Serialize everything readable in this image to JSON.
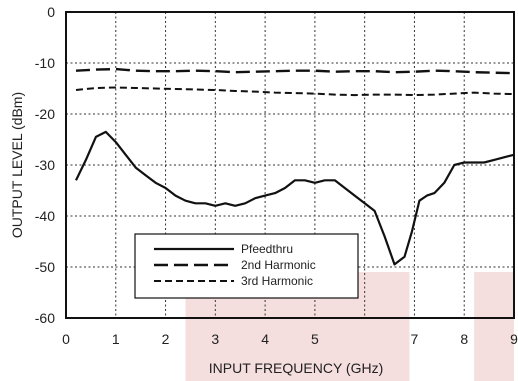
{
  "chart_data": {
    "type": "line",
    "title": "",
    "xlabel": "INPUT FREQUENCY (GHz)",
    "ylabel": "OUTPUT LEVEL (dBm)",
    "xlim": [
      0,
      9
    ],
    "ylim": [
      -60,
      0
    ],
    "xticks": [
      "0",
      "1",
      "2",
      "3",
      "4",
      "5",
      "7",
      "8",
      "9"
    ],
    "xtick_values": [
      0,
      1,
      2,
      3,
      4,
      5,
      7,
      8,
      9
    ],
    "yticks": [
      "0",
      "-10",
      "-20",
      "-30",
      "-40",
      "-50",
      "-60"
    ],
    "ytick_values": [
      0,
      -10,
      -20,
      -30,
      -40,
      -50,
      -60
    ],
    "grid": true,
    "legend_position": "bottom-left",
    "highlight_colour": "#f5dede",
    "highlights": [
      [
        2.4,
        6.9
      ],
      [
        8.2,
        9.0
      ]
    ],
    "series": [
      {
        "name": "Pfeedthru",
        "style": "solid",
        "x": [
          0.2,
          0.4,
          0.6,
          0.8,
          1.0,
          1.2,
          1.4,
          1.6,
          1.8,
          2.0,
          2.2,
          2.4,
          2.6,
          2.8,
          3.0,
          3.2,
          3.4,
          3.6,
          3.8,
          4.0,
          4.2,
          4.4,
          4.6,
          4.8,
          5.0,
          5.2,
          5.4,
          5.6,
          5.8,
          6.0,
          6.2,
          6.4,
          6.6,
          6.8,
          6.95,
          7.1,
          7.25,
          7.4,
          7.6,
          7.8,
          8.0,
          8.2,
          8.4,
          8.6,
          8.8,
          9.0
        ],
        "values": [
          -33,
          -29,
          -24.5,
          -23.5,
          -25.5,
          -28,
          -30.5,
          -32,
          -33.5,
          -34.5,
          -36,
          -37,
          -37.5,
          -37.5,
          -38,
          -37.5,
          -38,
          -37.5,
          -36.5,
          -36,
          -35.5,
          -34.5,
          -33,
          -33,
          -33.5,
          -33,
          -33,
          -34.5,
          -36,
          -37.5,
          -39,
          -44,
          -49.5,
          -48,
          -43,
          -37,
          -36,
          -35.5,
          -33.5,
          -30,
          -29.5,
          -29.5,
          -29.5,
          -29,
          -28.5,
          -28
        ]
      },
      {
        "name": "2nd Harmonic",
        "style": "long-dash",
        "x": [
          0.2,
          0.6,
          1.0,
          1.4,
          1.8,
          2.2,
          2.6,
          3.0,
          3.4,
          3.8,
          4.2,
          4.6,
          5.0,
          5.4,
          5.8,
          6.2,
          6.6,
          7.0,
          7.4,
          7.8,
          8.2,
          8.6,
          9.0
        ],
        "values": [
          -11.5,
          -11.3,
          -11.2,
          -11.5,
          -11.6,
          -11.6,
          -11.5,
          -11.6,
          -11.8,
          -11.7,
          -11.6,
          -11.5,
          -11.5,
          -11.7,
          -11.6,
          -11.6,
          -11.8,
          -11.7,
          -11.5,
          -11.6,
          -11.8,
          -11.9,
          -12.0
        ]
      },
      {
        "name": "3rd Harmonic",
        "style": "short-dash",
        "x": [
          0.2,
          0.6,
          1.0,
          1.4,
          1.8,
          2.2,
          2.6,
          3.0,
          3.4,
          3.8,
          4.2,
          4.6,
          5.0,
          5.4,
          5.8,
          6.2,
          6.6,
          7.0,
          7.4,
          7.8,
          8.2,
          8.6,
          9.0
        ],
        "values": [
          -15.3,
          -14.9,
          -14.8,
          -14.9,
          -15.0,
          -15.1,
          -15.2,
          -15.3,
          -15.5,
          -15.6,
          -15.8,
          -15.9,
          -16.0,
          -16.2,
          -16.3,
          -16.2,
          -16.2,
          -16.3,
          -16.2,
          -16.0,
          -15.8,
          -16.0,
          -16.1
        ]
      }
    ]
  }
}
